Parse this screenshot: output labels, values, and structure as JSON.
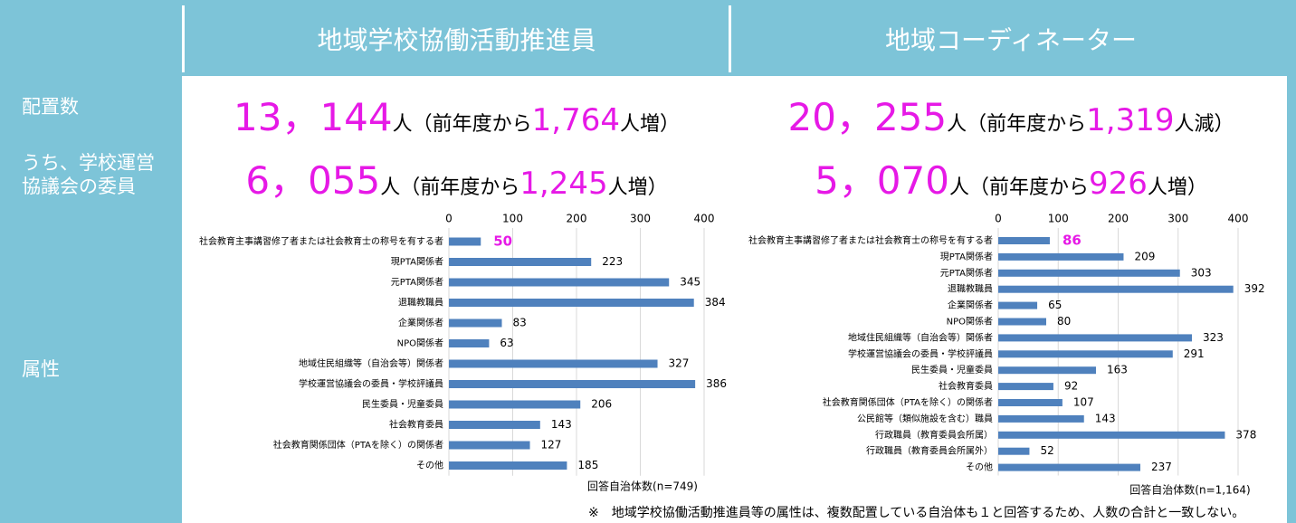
{
  "header": {
    "col1": "地域学校協働活動推進員",
    "col2": "地域コーディネーター"
  },
  "rows": [
    {
      "label": "配置数",
      "cells": [
        {
          "count": "13，144",
          "unit": "人（前年度から",
          "change": "1,764",
          "suffix": "人増）"
        },
        {
          "count": "20，255",
          "unit": "人（前年度から",
          "change": "1,319",
          "suffix": "人減）"
        }
      ]
    },
    {
      "label": "うち、学校運営協議会の委員",
      "cells": [
        {
          "count": "6，055",
          "unit": "人（前年度から",
          "change": "1,245",
          "suffix": "人増）"
        },
        {
          "count": "5，070",
          "unit": "人（前年度から",
          "change": "926",
          "suffix": "人増）"
        }
      ]
    },
    {
      "label": "属性"
    }
  ],
  "chart_data": [
    {
      "type": "hbar",
      "categories": [
        "社会教育主事講習修了者または社会教育士の称号を有する者",
        "現PTA関係者",
        "元PTA関係者",
        "退職教職員",
        "企業関係者",
        "NPO関係者",
        "地域住民組織等（自治会等）関係者",
        "学校運営協議会の委員・学校評議員",
        "民生委員・児童委員",
        "社会教育委員",
        "社会教育関係団体（PTAを除く）の関係者",
        "その他"
      ],
      "values": [
        50,
        223,
        345,
        384,
        83,
        63,
        327,
        386,
        206,
        143,
        127,
        185
      ],
      "color": "#4f81bd",
      "highlight": {
        "index": 0,
        "color": "#e619e6"
      },
      "xlim": [
        0,
        400
      ],
      "xticks": [
        0,
        100,
        200,
        300,
        400
      ],
      "grid": true,
      "annotation": "回答自治体数(n=749)"
    },
    {
      "type": "hbar",
      "categories": [
        "社会教育主事講習修了者または社会教育士の称号を有する者",
        "現PTA関係者",
        "元PTA関係者",
        "退職教職員",
        "企業関係者",
        "NPO関係者",
        "地域住民組織等（自治会等）関係者",
        "学校運営協議会の委員・学校評議員",
        "民生委員・児童委員",
        "社会教育委員",
        "社会教育関係団体（PTAを除く）の関係者",
        "公民館等（類似施設を含む）職員",
        "行政職員（教育委員会所属）",
        "行政職員（教育委員会所属外）",
        "その他"
      ],
      "values": [
        86,
        209,
        303,
        392,
        65,
        80,
        323,
        291,
        163,
        92,
        107,
        143,
        378,
        52,
        237
      ],
      "color": "#4f81bd",
      "highlight": {
        "index": 0,
        "color": "#e619e6"
      },
      "xlim": [
        0,
        400
      ],
      "xticks": [
        0,
        100,
        200,
        300,
        400
      ],
      "grid": true,
      "annotation": "回答自治体数(n=1,164)"
    }
  ],
  "note": "※　地域学校協働活動推進員等の属性は、複数配置している自治体も１と回答するため、人数の合計と一致しない。"
}
